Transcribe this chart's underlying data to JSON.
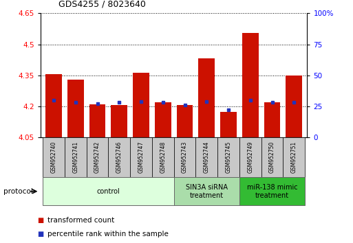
{
  "title": "GDS4255 / 8023640",
  "samples": [
    "GSM952740",
    "GSM952741",
    "GSM952742",
    "GSM952746",
    "GSM952747",
    "GSM952748",
    "GSM952743",
    "GSM952744",
    "GSM952745",
    "GSM952749",
    "GSM952750",
    "GSM952751"
  ],
  "transformed_count": [
    4.355,
    4.328,
    4.208,
    4.207,
    4.363,
    4.218,
    4.205,
    4.432,
    4.172,
    4.555,
    4.218,
    4.348
  ],
  "percentile_rank": [
    30,
    28,
    27,
    28,
    29,
    28,
    26,
    29,
    22,
    30,
    28,
    28
  ],
  "ylim_left": [
    4.05,
    4.65
  ],
  "ylim_right": [
    0,
    100
  ],
  "yticks_left": [
    4.05,
    4.2,
    4.35,
    4.5,
    4.65
  ],
  "ytick_labels_left": [
    "4.05",
    "4.2",
    "4.35",
    "4.5",
    "4.65"
  ],
  "yticks_right": [
    0,
    25,
    50,
    75,
    100
  ],
  "ytick_labels_right": [
    "0",
    "25",
    "50",
    "75",
    "100%"
  ],
  "bar_color": "#cc1100",
  "blue_color": "#2233bb",
  "groups": [
    {
      "label": "control",
      "start": 0,
      "end": 5,
      "color": "#ddffdd"
    },
    {
      "label": "SIN3A siRNA\ntreatment",
      "start": 6,
      "end": 8,
      "color": "#aaddaa"
    },
    {
      "label": "miR-138 mimic\ntreatment",
      "start": 9,
      "end": 11,
      "color": "#33bb33"
    }
  ],
  "baseline": 4.05,
  "label_box_color": "#c8c8c8",
  "legend_items": [
    {
      "label": "transformed count",
      "color": "#cc1100"
    },
    {
      "label": "percentile rank within the sample",
      "color": "#2233bb"
    }
  ]
}
